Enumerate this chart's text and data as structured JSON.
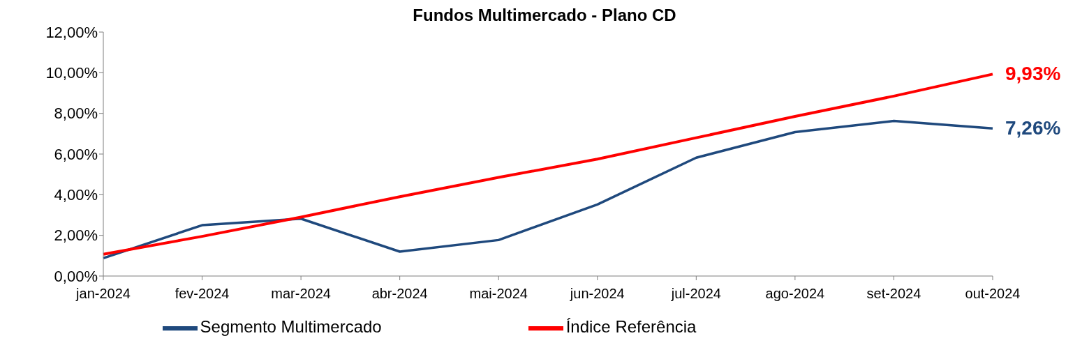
{
  "chart_data": {
    "type": "line",
    "title": "Fundos Multimercado - Plano CD",
    "categories": [
      "jan-2024",
      "fev-2024",
      "mar-2024",
      "abr-2024",
      "mai-2024",
      "jun-2024",
      "jul-2024",
      "ago-2024",
      "set-2024",
      "out-2024"
    ],
    "series": [
      {
        "name": "Segmento Multimercado",
        "color": "#1f497d",
        "values": [
          0.88,
          2.5,
          2.82,
          1.2,
          1.77,
          3.52,
          5.82,
          7.08,
          7.63,
          7.26
        ],
        "value_labels": [
          null,
          null,
          null,
          null,
          null,
          null,
          null,
          null,
          null,
          "7,26%"
        ]
      },
      {
        "name": "Índice Referência",
        "color": "#ff0000",
        "values": [
          1.07,
          1.95,
          2.9,
          3.9,
          4.85,
          5.75,
          6.8,
          7.85,
          8.85,
          9.93
        ],
        "value_labels": [
          null,
          null,
          null,
          null,
          null,
          null,
          null,
          null,
          null,
          "9,93%"
        ]
      }
    ],
    "ylim": [
      0,
      12
    ],
    "yticks": [
      {
        "value": 0,
        "label": "0,00%"
      },
      {
        "value": 2,
        "label": "2,00%"
      },
      {
        "value": 4,
        "label": "4,00%"
      },
      {
        "value": 6,
        "label": "6,00%"
      },
      {
        "value": 8,
        "label": "8,00%"
      },
      {
        "value": 10,
        "label": "10,00%"
      },
      {
        "value": 12,
        "label": "12,00%"
      }
    ],
    "grid": false,
    "legend": "bottom",
    "marker": "none",
    "line_style": "solid"
  }
}
